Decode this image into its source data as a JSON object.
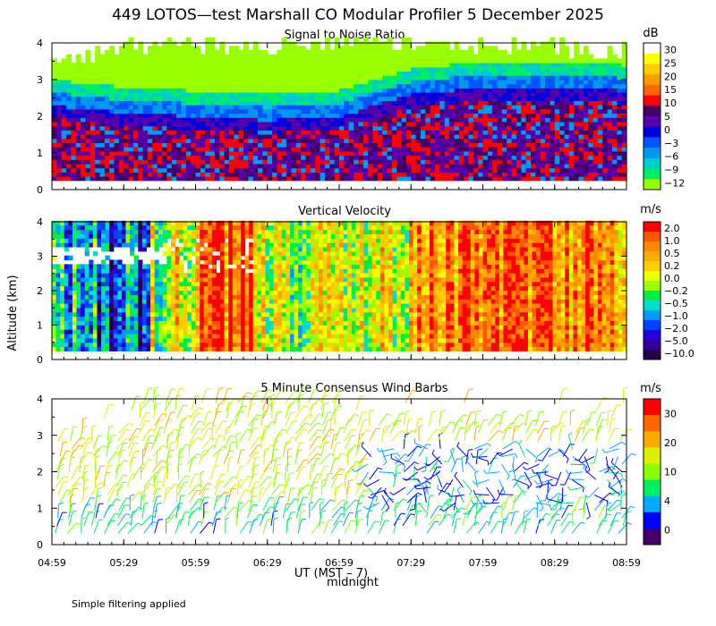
{
  "title": "449 LOTOS—test Marshall CO Modular Profiler  5 December 2025",
  "ylabel": "Altitude (km)",
  "xlabel": "UT (MST – 7)",
  "midnight_label": "midnight",
  "footnote": "Simple filtering applied",
  "time_ticks": [
    "04:59",
    "05:29",
    "05:59",
    "06:29",
    "06:59",
    "07:29",
    "07:59",
    "08:29",
    "08:59"
  ],
  "altitude_ticks": [
    "0",
    "1",
    "2",
    "3",
    "4"
  ],
  "panels": {
    "snr": {
      "title": "Signal to Noise Ratio",
      "units": "dB",
      "colorbar_labels": [
        "30",
        "25",
        "20",
        "15",
        "10",
        "5",
        "0",
        "−3",
        "−6",
        "−9",
        "−12"
      ],
      "colorbar_colors": [
        "#ffffff",
        "#ffff00",
        "#ffcc00",
        "#ff9900",
        "#ff6600",
        "#ff0000",
        "#440066",
        "#5500aa",
        "#0000dd",
        "#0055ff",
        "#0099ee",
        "#00cccc",
        "#00ee66",
        "#99ff00"
      ]
    },
    "velocity": {
      "title": "Vertical Velocity",
      "units": "m/s",
      "colorbar_labels": [
        "2.0",
        "1.0",
        "0.5",
        "0.2",
        "0.0",
        "−0.2",
        "−0.5",
        "−1.0",
        "−2.0",
        "−5.0",
        "−10.0"
      ],
      "colorbar_colors": [
        "#ff0000",
        "#ff5500",
        "#ff8800",
        "#ffaa00",
        "#ffcc00",
        "#eeff00",
        "#99ff00",
        "#00ee44",
        "#00ddcc",
        "#0099ff",
        "#0044ff",
        "#2200dd",
        "#330099",
        "#220044"
      ]
    },
    "wind": {
      "title": "5 Minute Consensus Wind Barbs",
      "units": "m/s",
      "colorbar_labels": [
        "30",
        "20",
        "10",
        "4",
        "0"
      ],
      "colorbar_colors": [
        "#ff0000",
        "#ff6600",
        "#ffaa00",
        "#ddee00",
        "#88ff00",
        "#00ee66",
        "#00aaff",
        "#0000ff",
        "#440066"
      ]
    }
  },
  "chart_data": [
    {
      "type": "heatmap",
      "title": "Signal to Noise Ratio",
      "xlabel": "UT (MST – 7)",
      "ylabel": "Altitude (km)",
      "units": "dB",
      "x_range": [
        "04:59",
        "08:59"
      ],
      "ylim": [
        0,
        4
      ],
      "colorbar_range": [
        -12,
        30
      ],
      "layers": [
        {
          "description_value": "upper_edge_km",
          "x": [
            "04:59",
            "05:29",
            "05:59",
            "06:29",
            "06:59",
            "07:29",
            "07:59",
            "08:29",
            "08:59"
          ],
          "y": [
            3.5,
            3.9,
            3.9,
            3.9,
            4.0,
            3.9,
            3.9,
            3.9,
            3.8
          ]
        },
        {
          "name": "strong_layer_top_km",
          "x": [
            "04:59",
            "05:29",
            "05:59",
            "06:29",
            "06:59",
            "07:29",
            "07:59",
            "08:29",
            "08:59"
          ],
          "y": [
            2.3,
            2.1,
            2.0,
            1.9,
            2.0,
            2.6,
            2.8,
            2.8,
            2.7
          ]
        }
      ],
      "grid": false,
      "legend": "right"
    },
    {
      "type": "heatmap",
      "title": "Vertical Velocity",
      "xlabel": "UT (MST – 7)",
      "ylabel": "Altitude (km)",
      "units": "m/s",
      "x_range": [
        "04:59",
        "08:59"
      ],
      "ylim": [
        0,
        4
      ],
      "colorbar_range": [
        -10.0,
        2.0
      ],
      "grid": false,
      "legend": "right"
    },
    {
      "type": "scatter",
      "title": "5 Minute Consensus Wind Barbs",
      "xlabel": "UT (MST – 7)",
      "ylabel": "Altitude (km)",
      "units": "m/s",
      "x_range": [
        "04:59",
        "08:59"
      ],
      "ylim": [
        0,
        4
      ],
      "colorbar_range": [
        0,
        30
      ],
      "grid": false,
      "legend": "right"
    }
  ]
}
